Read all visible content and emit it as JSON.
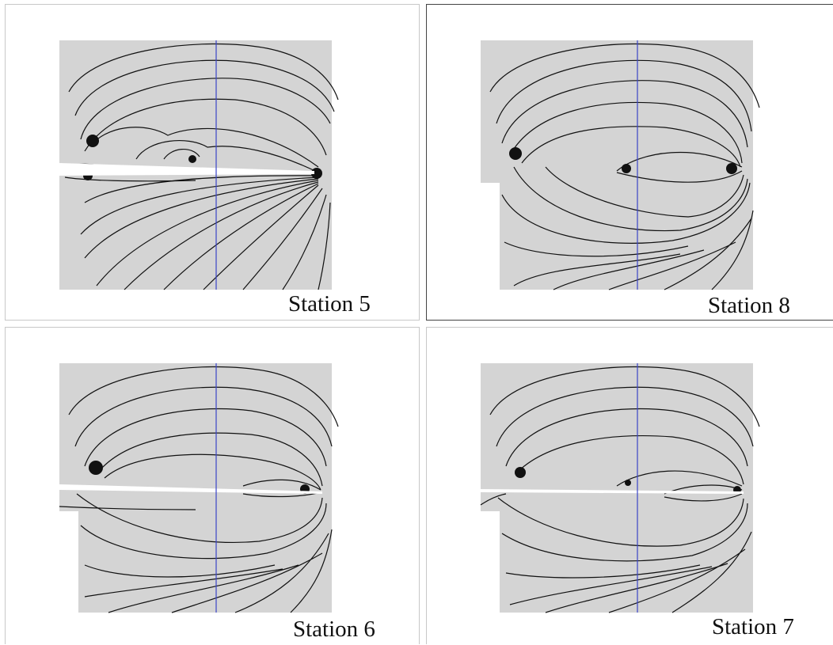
{
  "panels": {
    "station5": {
      "label": "Station 5"
    },
    "station8": {
      "label": "Station 8"
    },
    "station6": {
      "label": "Station 6"
    },
    "station7": {
      "label": "Station 7"
    }
  },
  "colors": {
    "field_background": "#d4d4d4",
    "streamline": "#111111",
    "reference_line": "#3a44c8",
    "wing_surface": "#ffffff"
  }
}
